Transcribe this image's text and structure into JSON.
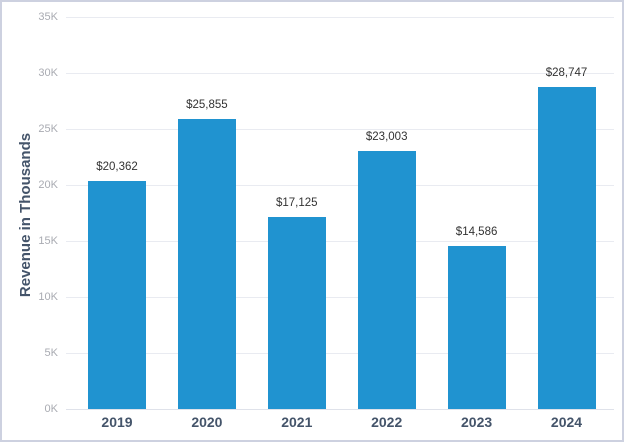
{
  "chart_data": {
    "type": "bar",
    "title": "",
    "xlabel": "",
    "ylabel": "Revenue in Thousands",
    "categories": [
      "2019",
      "2020",
      "2021",
      "2022",
      "2023",
      "2024"
    ],
    "values": [
      20362,
      25855,
      17125,
      23003,
      14586,
      28747
    ],
    "value_labels": [
      "$20,362",
      "$25,855",
      "$17,125",
      "$23,003",
      "$14,586",
      "$28,747"
    ],
    "ylim": [
      0,
      35000
    ],
    "y_tick_values": [
      0,
      5000,
      10000,
      15000,
      20000,
      25000,
      30000,
      35000
    ],
    "y_tick_labels": [
      "0K",
      "5K",
      "10K",
      "15K",
      "20K",
      "25K",
      "30K",
      "35K"
    ],
    "grid": true,
    "legend": false,
    "colors": {
      "bar_fill": "#2093d0",
      "value_label_text": "#333333",
      "y_tick_text": "#a9abb2",
      "category_text": "#44546a",
      "y_axis_title_text": "#44546a",
      "gridline": "#e9ebf1",
      "baseline": "#dfe2ea",
      "frame_border": "#cdd1e0",
      "background": "#ffffff"
    }
  }
}
